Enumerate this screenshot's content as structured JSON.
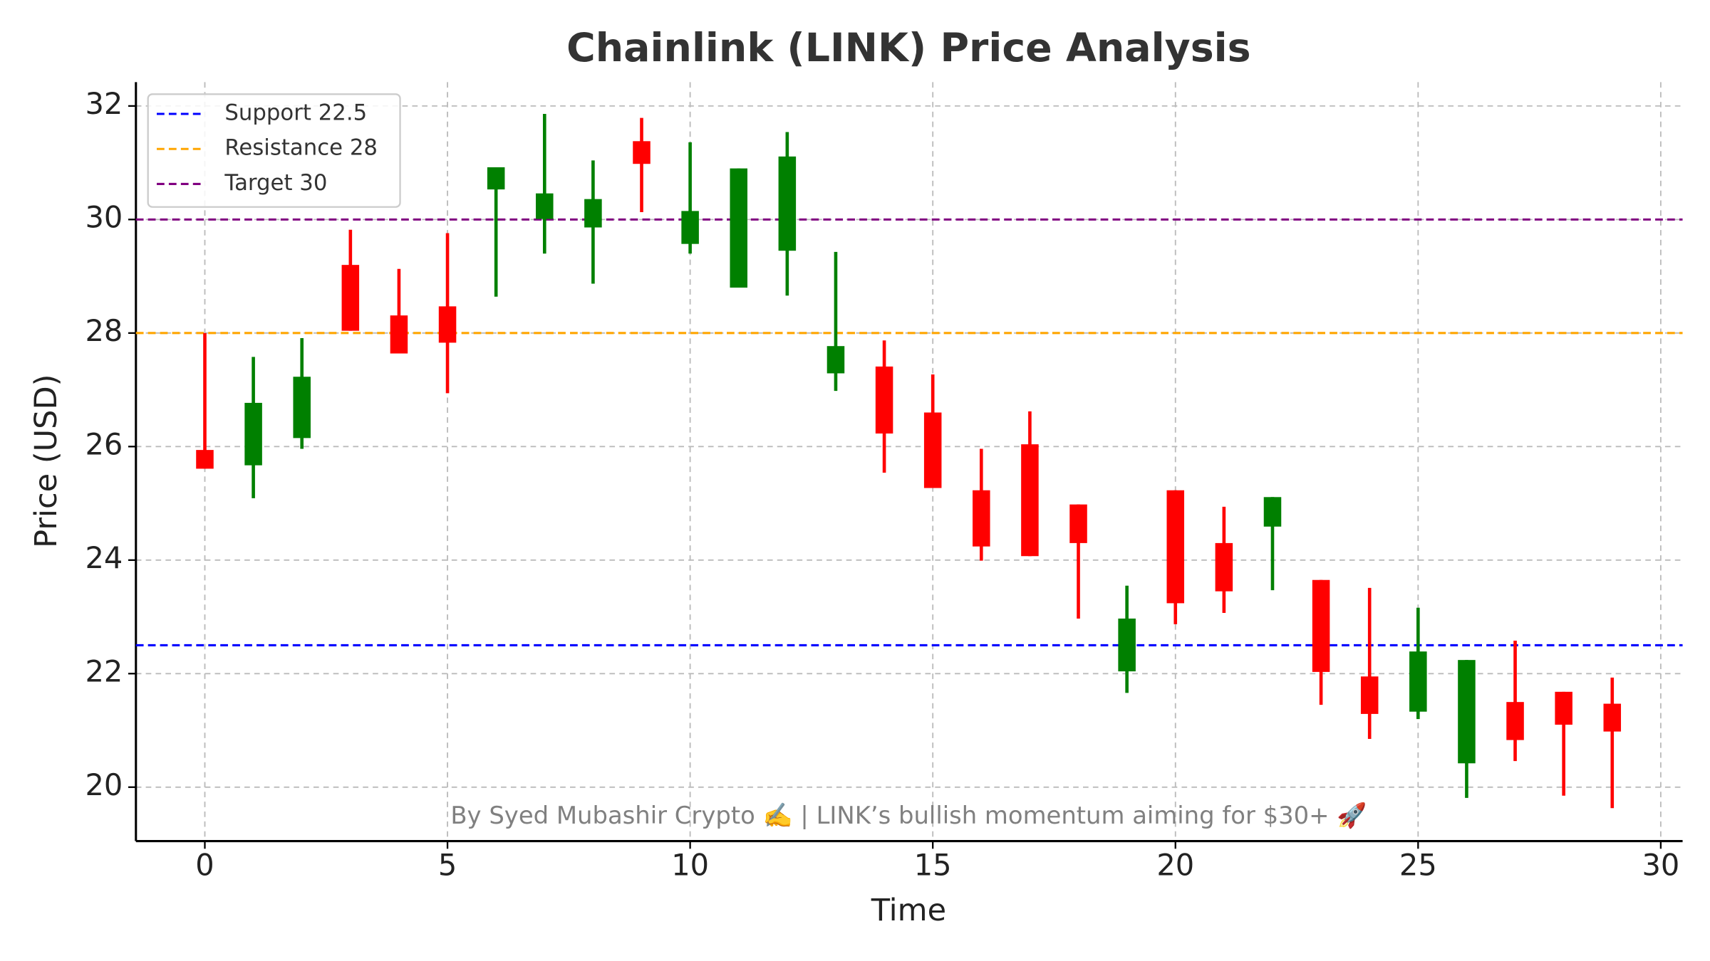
{
  "chart_data": {
    "type": "candlestick",
    "title": "Chainlink (LINK) Price Analysis",
    "x_label": "Time",
    "y_label": "Price (USD)",
    "x": [
      0,
      1,
      2,
      3,
      4,
      5,
      6,
      7,
      8,
      9,
      10,
      11,
      12,
      13,
      14,
      15,
      16,
      17,
      18,
      19,
      20,
      21,
      22,
      23,
      24,
      25,
      26,
      27,
      28,
      29
    ],
    "open": [
      25.94,
      25.67,
      26.15,
      29.2,
      28.31,
      28.47,
      30.53,
      30.01,
      29.86,
      31.38,
      29.57,
      28.8,
      29.45,
      27.29,
      27.41,
      26.6,
      25.23,
      26.04,
      24.98,
      22.04,
      25.23,
      24.3,
      24.59,
      23.65,
      21.95,
      21.33,
      20.42,
      21.5,
      21.68,
      21.47
    ],
    "high": [
      28.0,
      27.58,
      27.91,
      29.82,
      29.13,
      29.76,
      30.92,
      31.86,
      31.04,
      31.79,
      31.36,
      30.9,
      31.54,
      29.43,
      27.87,
      27.27,
      25.96,
      26.62,
      24.98,
      23.55,
      25.23,
      24.94,
      25.11,
      23.65,
      23.51,
      23.16,
      22.24,
      22.58,
      21.68,
      21.93
    ],
    "low": [
      25.61,
      25.09,
      25.96,
      28.04,
      27.64,
      26.94,
      28.64,
      29.4,
      28.87,
      30.13,
      29.4,
      28.8,
      28.66,
      26.98,
      25.54,
      25.27,
      23.99,
      24.07,
      22.97,
      21.66,
      22.87,
      23.07,
      23.47,
      21.45,
      20.85,
      21.2,
      19.81,
      20.46,
      19.85,
      19.63
    ],
    "close": [
      25.61,
      26.77,
      27.23,
      28.04,
      27.64,
      27.83,
      30.92,
      30.46,
      30.36,
      30.98,
      30.15,
      30.9,
      31.11,
      27.77,
      26.23,
      25.27,
      24.24,
      24.07,
      24.3,
      22.97,
      23.24,
      23.45,
      25.11,
      22.03,
      21.29,
      22.39,
      22.24,
      20.83,
      21.1,
      20.98
    ],
    "up_color": "#008000",
    "down_color": "#ff0000",
    "lines": [
      {
        "name": "Support 22.5",
        "value": 22.5,
        "color": "#0000ff"
      },
      {
        "name": "Resistance 28",
        "value": 28,
        "color": "#ffa500"
      },
      {
        "name": "Target 30",
        "value": 30,
        "color": "#800080"
      }
    ],
    "annotation": "By Syed Mubashir Crypto ✍️ | LINK’s bullish momentum aiming for $30+ 🚀",
    "xlim": [
      -1.42,
      30.45
    ],
    "ylim": [
      19.05,
      32.42
    ],
    "xticks": [
      0,
      5,
      10,
      15,
      20,
      25,
      30
    ],
    "yticks": [
      20,
      22,
      24,
      26,
      28,
      30,
      32
    ],
    "grid": true,
    "legend": "upper left"
  }
}
